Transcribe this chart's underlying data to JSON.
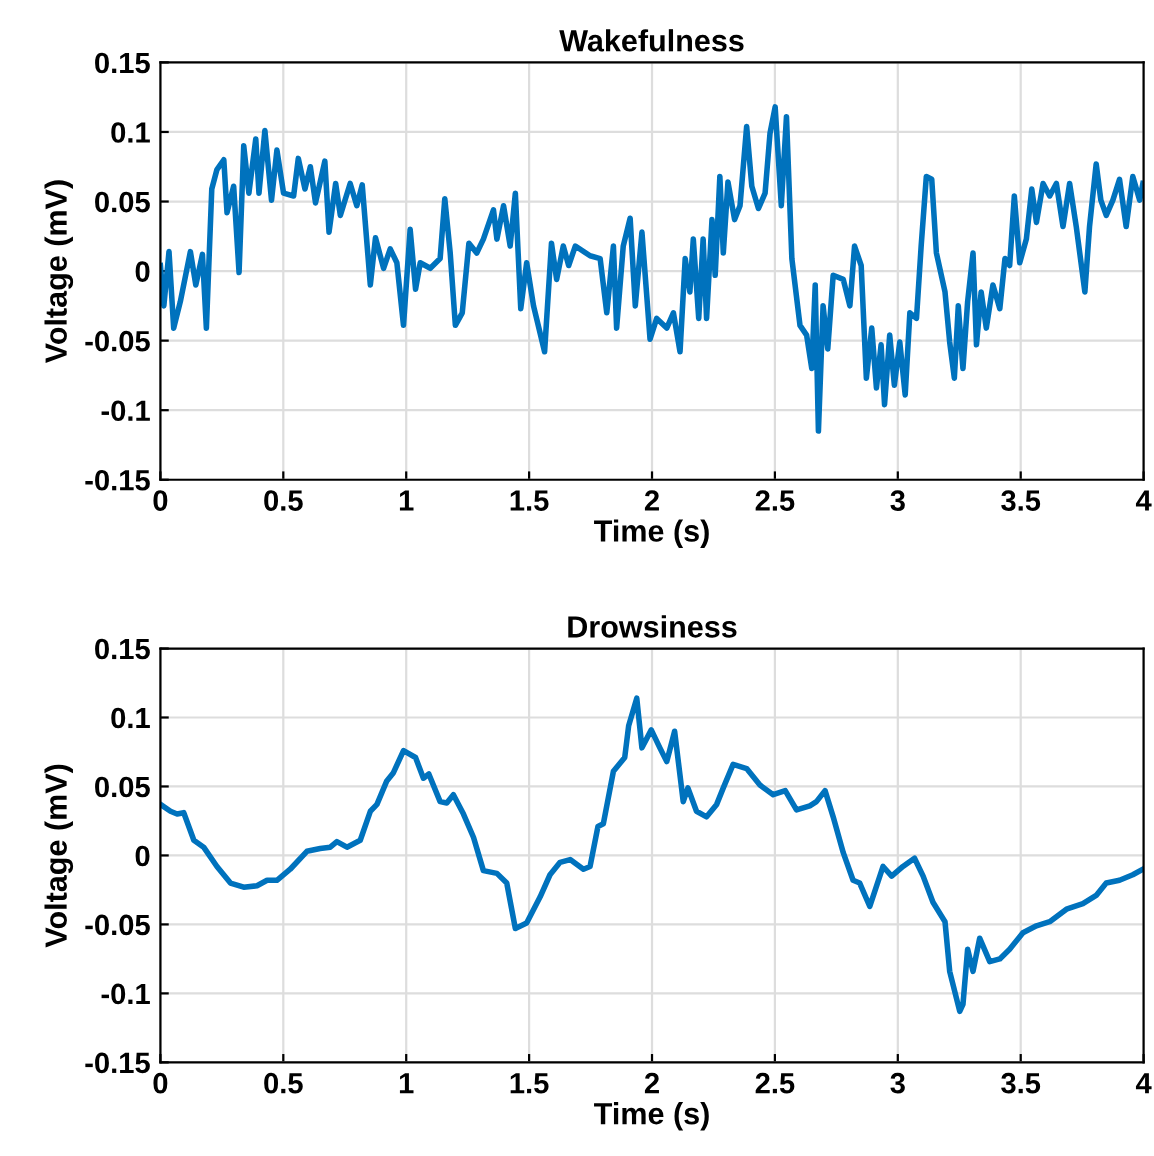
{
  "chart_data": [
    {
      "type": "line",
      "title": "Wakefulness",
      "xlabel": "Time (s)",
      "ylabel": "Voltage (mV)",
      "xlim": [
        0,
        4
      ],
      "ylim": [
        -0.15,
        0.15
      ],
      "xticks": [
        0,
        0.5,
        1,
        1.5,
        2,
        2.5,
        3,
        3.5,
        4
      ],
      "yticks": [
        -0.15,
        -0.1,
        -0.05,
        0,
        0.05,
        0.1,
        0.15
      ],
      "grid": true,
      "series": [
        {
          "color": "#0072bd",
          "x": [
            0.0,
            0.014,
            0.035,
            0.054,
            0.081,
            0.122,
            0.144,
            0.171,
            0.187,
            0.209,
            0.23,
            0.258,
            0.271,
            0.298,
            0.32,
            0.339,
            0.36,
            0.388,
            0.401,
            0.425,
            0.452,
            0.474,
            0.501,
            0.542,
            0.561,
            0.588,
            0.61,
            0.631,
            0.669,
            0.686,
            0.713,
            0.732,
            0.772,
            0.799,
            0.821,
            0.854,
            0.875,
            0.908,
            0.935,
            0.962,
            0.989,
            1.016,
            1.038,
            1.057,
            1.098,
            1.138,
            1.157,
            1.179,
            1.2,
            1.228,
            1.255,
            1.287,
            1.314,
            1.355,
            1.369,
            1.396,
            1.423,
            1.444,
            1.466,
            1.49,
            1.518,
            1.563,
            1.591,
            1.612,
            1.639,
            1.661,
            1.688,
            1.748,
            1.789,
            1.816,
            1.843,
            1.856,
            1.883,
            1.911,
            1.932,
            1.959,
            1.992,
            2.019,
            2.06,
            2.087,
            2.114,
            2.135,
            2.154,
            2.168,
            2.19,
            2.208,
            2.222,
            2.244,
            2.257,
            2.276,
            2.29,
            2.309,
            2.336,
            2.358,
            2.385,
            2.406,
            2.433,
            2.46,
            2.48,
            2.501,
            2.526,
            2.547,
            2.569,
            2.602,
            2.629,
            2.65,
            2.664,
            2.677,
            2.696,
            2.715,
            2.737,
            2.778,
            2.805,
            2.824,
            2.851,
            2.872,
            2.894,
            2.913,
            2.932,
            2.946,
            2.967,
            2.986,
            3.008,
            3.03,
            3.049,
            3.076,
            3.095,
            3.116,
            3.138,
            3.157,
            3.192,
            3.211,
            3.23,
            3.246,
            3.265,
            3.284,
            3.306,
            3.32,
            3.339,
            3.36,
            3.387,
            3.415,
            3.436,
            3.455,
            3.474,
            3.496,
            3.523,
            3.545,
            3.564,
            3.591,
            3.618,
            3.645,
            3.672,
            3.699,
            3.726,
            3.761,
            3.78,
            3.807,
            3.826,
            3.848,
            3.875,
            3.902,
            3.929,
            3.956,
            3.984,
            3.997
          ],
          "values": [
            0.004,
            -0.025,
            0.014,
            -0.041,
            -0.022,
            0.014,
            -0.01,
            0.012,
            -0.041,
            0.059,
            0.073,
            0.08,
            0.042,
            0.061,
            -0.001,
            0.09,
            0.056,
            0.095,
            0.056,
            0.101,
            0.051,
            0.087,
            0.056,
            0.054,
            0.081,
            0.059,
            0.075,
            0.049,
            0.079,
            0.028,
            0.063,
            0.04,
            0.063,
            0.047,
            0.062,
            -0.01,
            0.024,
            0.002,
            0.016,
            0.006,
            -0.039,
            0.03,
            -0.013,
            0.006,
            0.002,
            0.009,
            0.052,
            0.013,
            -0.039,
            -0.03,
            0.02,
            0.013,
            0.023,
            0.044,
            0.023,
            0.047,
            0.018,
            0.056,
            -0.027,
            0.006,
            -0.025,
            -0.058,
            0.02,
            -0.006,
            0.018,
            0.004,
            0.018,
            0.011,
            0.009,
            -0.03,
            0.018,
            -0.041,
            0.018,
            0.038,
            -0.025,
            0.028,
            -0.049,
            -0.034,
            -0.041,
            -0.03,
            -0.058,
            0.009,
            -0.015,
            0.023,
            -0.034,
            0.023,
            -0.034,
            0.037,
            -0.003,
            0.068,
            0.013,
            0.064,
            0.037,
            0.047,
            0.104,
            0.061,
            0.045,
            0.056,
            0.099,
            0.118,
            0.047,
            0.111,
            0.009,
            -0.039,
            -0.046,
            -0.07,
            -0.01,
            -0.115,
            -0.025,
            -0.056,
            -0.003,
            -0.006,
            -0.025,
            0.018,
            0.004,
            -0.077,
            -0.041,
            -0.084,
            -0.053,
            -0.096,
            -0.046,
            -0.082,
            -0.051,
            -0.089,
            -0.03,
            -0.034,
            0.018,
            0.068,
            0.066,
            0.013,
            -0.015,
            -0.051,
            -0.077,
            -0.025,
            -0.07,
            -0.022,
            0.013,
            -0.053,
            -0.015,
            -0.041,
            -0.01,
            -0.027,
            0.009,
            0.004,
            0.054,
            0.006,
            0.023,
            0.059,
            0.035,
            0.063,
            0.054,
            0.063,
            0.032,
            0.063,
            0.032,
            -0.015,
            0.032,
            0.077,
            0.051,
            0.04,
            0.051,
            0.066,
            0.032,
            0.068,
            0.051,
            0.063
          ]
        }
      ]
    },
    {
      "type": "line",
      "title": "Drowsiness",
      "xlabel": "Time (s)",
      "ylabel": "Voltage (mV)",
      "xlim": [
        0,
        4
      ],
      "ylim": [
        -0.15,
        0.15
      ],
      "xticks": [
        0,
        0.5,
        1,
        1.5,
        2,
        2.5,
        3,
        3.5,
        4
      ],
      "yticks": [
        -0.15,
        -0.1,
        -0.05,
        0,
        0.05,
        0.1,
        0.15
      ],
      "grid": true,
      "series": [
        {
          "color": "#0072bd",
          "x": [
            0.0,
            0.041,
            0.068,
            0.095,
            0.136,
            0.176,
            0.23,
            0.285,
            0.339,
            0.393,
            0.434,
            0.474,
            0.528,
            0.596,
            0.65,
            0.691,
            0.718,
            0.759,
            0.813,
            0.854,
            0.881,
            0.921,
            0.948,
            0.989,
            1.038,
            1.07,
            1.092,
            1.138,
            1.165,
            1.192,
            1.233,
            1.274,
            1.314,
            1.369,
            1.409,
            1.444,
            1.49,
            1.545,
            1.585,
            1.626,
            1.667,
            1.721,
            1.748,
            1.78,
            1.802,
            1.843,
            1.889,
            1.905,
            1.938,
            1.959,
            1.997,
            2.032,
            2.06,
            2.092,
            2.127,
            2.146,
            2.181,
            2.222,
            2.263,
            2.29,
            2.33,
            2.385,
            2.439,
            2.493,
            2.542,
            2.588,
            2.642,
            2.669,
            2.704,
            2.737,
            2.778,
            2.818,
            2.845,
            2.886,
            2.94,
            2.975,
            3.021,
            3.068,
            3.103,
            3.143,
            3.192,
            3.211,
            3.252,
            3.265,
            3.284,
            3.306,
            3.333,
            3.374,
            3.415,
            3.455,
            3.509,
            3.564,
            3.618,
            3.686,
            3.753,
            3.807,
            3.848,
            3.902,
            3.956,
            3.997
          ],
          "values": [
            0.037,
            0.032,
            0.03,
            0.031,
            0.011,
            0.006,
            -0.008,
            -0.02,
            -0.023,
            -0.022,
            -0.018,
            -0.018,
            -0.01,
            0.003,
            0.005,
            0.006,
            0.01,
            0.006,
            0.011,
            0.032,
            0.037,
            0.054,
            0.06,
            0.076,
            0.071,
            0.056,
            0.059,
            0.039,
            0.038,
            0.044,
            0.03,
            0.013,
            -0.011,
            -0.013,
            -0.02,
            -0.053,
            -0.049,
            -0.03,
            -0.014,
            -0.005,
            -0.003,
            -0.01,
            -0.008,
            0.021,
            0.023,
            0.061,
            0.071,
            0.094,
            0.114,
            0.078,
            0.091,
            0.078,
            0.068,
            0.09,
            0.039,
            0.049,
            0.032,
            0.028,
            0.037,
            0.049,
            0.066,
            0.063,
            0.051,
            0.044,
            0.047,
            0.033,
            0.036,
            0.039,
            0.047,
            0.028,
            0.002,
            -0.018,
            -0.02,
            -0.037,
            -0.008,
            -0.015,
            -0.008,
            -0.002,
            -0.015,
            -0.034,
            -0.048,
            -0.084,
            -0.113,
            -0.108,
            -0.068,
            -0.084,
            -0.06,
            -0.077,
            -0.075,
            -0.068,
            -0.056,
            -0.051,
            -0.048,
            -0.039,
            -0.035,
            -0.029,
            -0.02,
            -0.018,
            -0.014,
            -0.01
          ]
        }
      ]
    }
  ]
}
